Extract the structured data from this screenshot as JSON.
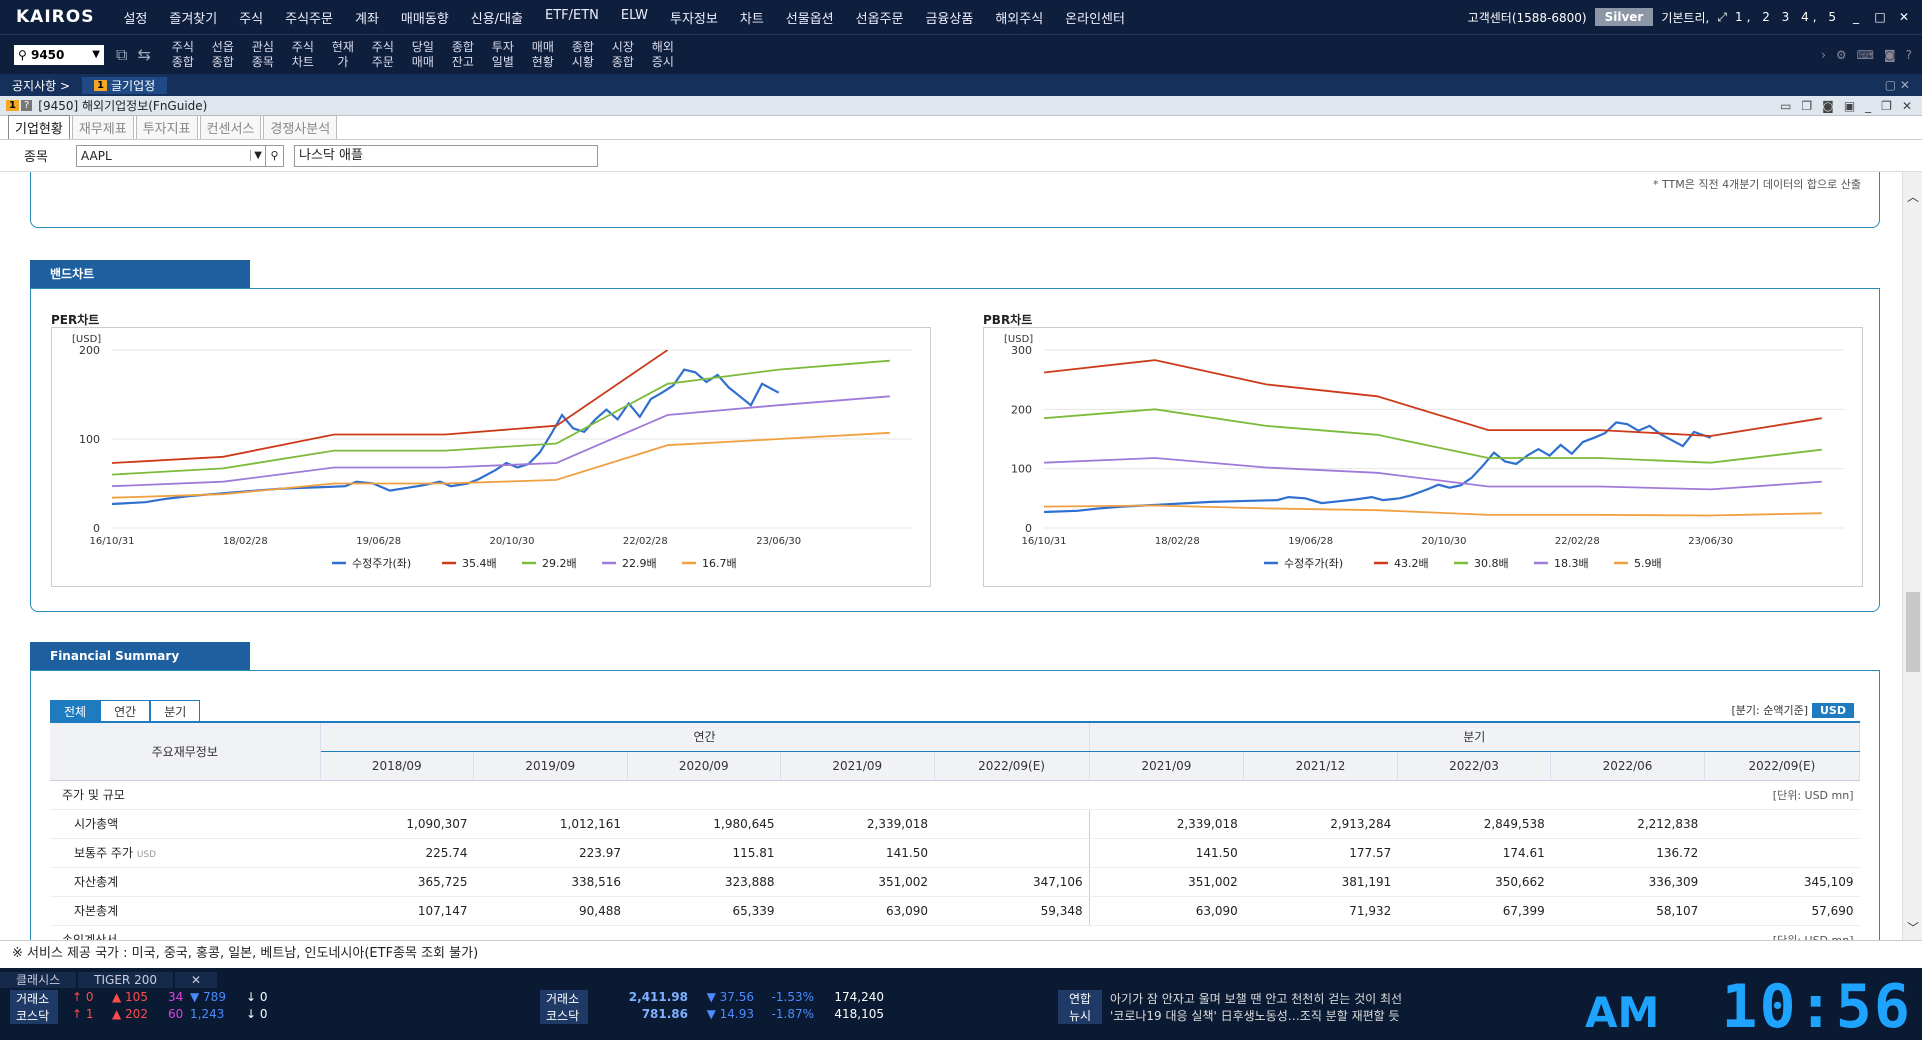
{
  "app": {
    "logo": "KAIROS",
    "menu": [
      "설정",
      "즐겨찾기",
      "주식",
      "주식주문",
      "계좌",
      "매매동향",
      "신용/대출",
      "ETF/ETN",
      "ELW",
      "투자정보",
      "차트",
      "선물옵션",
      "선옵주문",
      "금융상품",
      "해외주식",
      "온라인센터"
    ],
    "customer_center": "고객센터(1588-6800)",
    "grade": "Silver",
    "layout": "기본트리,",
    "screens": "1, 2  3  4, 5"
  },
  "toolbar": {
    "code": "9450",
    "quick": [
      "주식\n종합",
      "선옵\n종합",
      "관심\n종목",
      "주식\n차트",
      "현재\n가",
      "주식\n주문",
      "당일\n매매",
      "종합\n잔고",
      "투자\n일별",
      "매매\n현황",
      "종합\n시황",
      "시장\n종합",
      "해외\n증시"
    ]
  },
  "tabs": {
    "notice": "공지사항 >",
    "active_badge": "1",
    "active": "글기업정",
    "right": "▢ ✕"
  },
  "window": {
    "title": "[9450] 해외기업정보(FnGuide)"
  },
  "subtabs": [
    "기업현황",
    "재무제표",
    "투자지표",
    "컨센서스",
    "경쟁사분석"
  ],
  "search": {
    "label": "종목",
    "symbol": "AAPL",
    "name": "나스닥  애플"
  },
  "ttm_note": "* TTM은 직전 4개분기 데이터의 합으로 산출",
  "band_section": "밴드차트",
  "chart_data": [
    {
      "type": "line",
      "title": "PER차트",
      "ylabel": "[USD]",
      "ylim": [
        0,
        200
      ],
      "yticks": [
        0,
        100,
        200
      ],
      "x_labels": [
        "16/10/31",
        "18/02/28",
        "19/06/28",
        "20/10/30",
        "22/02/28",
        "23/06/30"
      ],
      "legend": [
        "수정주가(좌)",
        "35.4배",
        "29.2배",
        "22.9배",
        "16.7배"
      ],
      "colors": [
        "#2f6fd0",
        "#cc3a1a",
        "#7cba3a",
        "#a07ad8",
        "#f0a040"
      ],
      "series": [
        {
          "name": "수정주가(좌)",
          "points": [
            [
              0,
              27
            ],
            [
              0.3,
              29
            ],
            [
              0.5,
              33
            ],
            [
              0.7,
              36
            ],
            [
              0.9,
              38
            ],
            [
              1.1,
              40
            ],
            [
              1.3,
              42
            ],
            [
              1.5,
              44
            ],
            [
              1.7,
              45
            ],
            [
              1.9,
              46
            ],
            [
              2.1,
              47
            ],
            [
              2.2,
              52
            ],
            [
              2.35,
              50
            ],
            [
              2.5,
              42
            ],
            [
              2.65,
              45
            ],
            [
              2.8,
              48
            ],
            [
              2.95,
              52
            ],
            [
              3.05,
              47
            ],
            [
              3.2,
              50
            ],
            [
              3.3,
              55
            ],
            [
              3.45,
              65
            ],
            [
              3.55,
              73
            ],
            [
              3.65,
              68
            ],
            [
              3.75,
              72
            ],
            [
              3.85,
              85
            ],
            [
              3.95,
              105
            ],
            [
              4.05,
              127
            ],
            [
              4.15,
              112
            ],
            [
              4.25,
              108
            ],
            [
              4.35,
              122
            ],
            [
              4.45,
              133
            ],
            [
              4.55,
              122
            ],
            [
              4.65,
              140
            ],
            [
              4.75,
              125
            ],
            [
              4.85,
              145
            ],
            [
              4.95,
              152
            ],
            [
              5.05,
              160
            ],
            [
              5.15,
              178
            ],
            [
              5.25,
              175
            ],
            [
              5.35,
              164
            ],
            [
              5.45,
              172
            ],
            [
              5.55,
              158
            ],
            [
              5.65,
              148
            ],
            [
              5.75,
              138
            ],
            [
              5.85,
              162
            ],
            [
              6.0,
              152
            ]
          ]
        },
        {
          "name": "35.4배",
          "points": [
            [
              0,
              73
            ],
            [
              1,
              80
            ],
            [
              2,
              105
            ],
            [
              3,
              105
            ],
            [
              4,
              115
            ],
            [
              5,
              200
            ]
          ]
        },
        {
          "name": "29.2배",
          "points": [
            [
              0,
              60
            ],
            [
              1,
              67
            ],
            [
              2,
              87
            ],
            [
              3,
              87
            ],
            [
              4,
              95
            ],
            [
              5,
              162
            ],
            [
              6,
              178
            ],
            [
              7,
              188
            ]
          ]
        },
        {
          "name": "22.9배",
          "points": [
            [
              0,
              47
            ],
            [
              1,
              52
            ],
            [
              2,
              68
            ],
            [
              3,
              68
            ],
            [
              4,
              73
            ],
            [
              5,
              127
            ],
            [
              6,
              138
            ],
            [
              7,
              148
            ]
          ]
        },
        {
          "name": "16.7배",
          "points": [
            [
              0,
              34
            ],
            [
              1,
              38
            ],
            [
              2,
              50
            ],
            [
              3,
              50
            ],
            [
              4,
              54
            ],
            [
              5,
              93
            ],
            [
              6,
              100
            ],
            [
              7,
              107
            ]
          ]
        }
      ]
    },
    {
      "type": "line",
      "title": "PBR차트",
      "ylabel": "[USD]",
      "ylim": [
        0,
        300
      ],
      "yticks": [
        0,
        100,
        200,
        300
      ],
      "x_labels": [
        "16/10/31",
        "18/02/28",
        "19/06/28",
        "20/10/30",
        "22/02/28",
        "23/06/30"
      ],
      "legend": [
        "수정주가(좌)",
        "43.2배",
        "30.8배",
        "18.3배",
        "5.9배"
      ],
      "colors": [
        "#2f6fd0",
        "#cc3a1a",
        "#7cba3a",
        "#a07ad8",
        "#f0a040"
      ],
      "series": [
        {
          "name": "수정주가(좌)",
          "points": [
            [
              0,
              27
            ],
            [
              0.3,
              29
            ],
            [
              0.5,
              33
            ],
            [
              0.7,
              36
            ],
            [
              0.9,
              38
            ],
            [
              1.1,
              40
            ],
            [
              1.3,
              42
            ],
            [
              1.5,
              44
            ],
            [
              1.7,
              45
            ],
            [
              1.9,
              46
            ],
            [
              2.1,
              47
            ],
            [
              2.2,
              52
            ],
            [
              2.35,
              50
            ],
            [
              2.5,
              42
            ],
            [
              2.65,
              45
            ],
            [
              2.8,
              48
            ],
            [
              2.95,
              52
            ],
            [
              3.05,
              47
            ],
            [
              3.2,
              50
            ],
            [
              3.3,
              55
            ],
            [
              3.45,
              65
            ],
            [
              3.55,
              73
            ],
            [
              3.65,
              68
            ],
            [
              3.75,
              72
            ],
            [
              3.85,
              85
            ],
            [
              3.95,
              105
            ],
            [
              4.05,
              127
            ],
            [
              4.15,
              112
            ],
            [
              4.25,
              108
            ],
            [
              4.35,
              122
            ],
            [
              4.45,
              133
            ],
            [
              4.55,
              122
            ],
            [
              4.65,
              140
            ],
            [
              4.75,
              125
            ],
            [
              4.85,
              145
            ],
            [
              4.95,
              152
            ],
            [
              5.05,
              160
            ],
            [
              5.15,
              178
            ],
            [
              5.25,
              175
            ],
            [
              5.35,
              164
            ],
            [
              5.45,
              172
            ],
            [
              5.55,
              158
            ],
            [
              5.65,
              148
            ],
            [
              5.75,
              138
            ],
            [
              5.85,
              162
            ],
            [
              6.0,
              152
            ]
          ]
        },
        {
          "name": "43.2배",
          "points": [
            [
              0,
              262
            ],
            [
              1,
              283
            ],
            [
              2,
              242
            ],
            [
              3,
              222
            ],
            [
              4,
              165
            ],
            [
              5,
              165
            ],
            [
              6,
              155
            ],
            [
              7,
              185
            ]
          ]
        },
        {
          "name": "30.8배",
          "points": [
            [
              0,
              185
            ],
            [
              1,
              200
            ],
            [
              2,
              172
            ],
            [
              3,
              157
            ],
            [
              4,
              118
            ],
            [
              5,
              118
            ],
            [
              6,
              110
            ],
            [
              7,
              132
            ]
          ]
        },
        {
          "name": "18.3배",
          "points": [
            [
              0,
              110
            ],
            [
              1,
              118
            ],
            [
              2,
              102
            ],
            [
              3,
              93
            ],
            [
              4,
              70
            ],
            [
              5,
              70
            ],
            [
              6,
              65
            ],
            [
              7,
              78
            ]
          ]
        },
        {
          "name": "5.9배",
          "points": [
            [
              0,
              36
            ],
            [
              1,
              38
            ],
            [
              2,
              33
            ],
            [
              3,
              30
            ],
            [
              4,
              22
            ],
            [
              5,
              22
            ],
            [
              6,
              21
            ],
            [
              7,
              25
            ]
          ]
        }
      ]
    }
  ],
  "financial": {
    "section": "Financial Summary",
    "tabs": [
      "전체",
      "연간",
      "분기"
    ],
    "basis": "[분기: 순액기준]",
    "currency": "USD",
    "col_head": "주요재무정보",
    "annual": "연간",
    "quarter": "분기",
    "cols": [
      "2018/09",
      "2019/09",
      "2020/09",
      "2021/09",
      "2022/09(E)",
      "2021/09",
      "2021/12",
      "2022/03",
      "2022/06",
      "2022/09(E)"
    ],
    "category": "주가 및 규모",
    "unit": "[단위: USD mn]",
    "rows": [
      {
        "name": "시가총액",
        "sub": "",
        "v": [
          "1,090,307",
          "1,012,161",
          "1,980,645",
          "2,339,018",
          "",
          "2,339,018",
          "2,913,284",
          "2,849,538",
          "2,212,838",
          ""
        ]
      },
      {
        "name": "보통주 주가",
        "sub": "USD",
        "v": [
          "225.74",
          "223.97",
          "115.81",
          "141.50",
          "",
          "141.50",
          "177.57",
          "174.61",
          "136.72",
          ""
        ]
      },
      {
        "name": "자산총계",
        "sub": "",
        "v": [
          "365,725",
          "338,516",
          "323,888",
          "351,002",
          "347,106",
          "351,002",
          "381,191",
          "350,662",
          "336,309",
          "345,109"
        ]
      },
      {
        "name": "자본총계",
        "sub": "",
        "v": [
          "107,147",
          "90,488",
          "65,339",
          "63,090",
          "59,348",
          "63,090",
          "71,932",
          "67,399",
          "58,107",
          "57,690"
        ]
      }
    ],
    "next_category": "손익계산서",
    "next_unit": "[단위: USD mn]"
  },
  "notice": "※ 서비스 제공 국가 : 미국, 중국, 홍콩, 일본, 베트남, 인도네시아(ETF종목 조회 불가)",
  "bottom": {
    "tabs": [
      "클래시스",
      "TIGER 200"
    ],
    "left": [
      {
        "market": "거래소",
        "a": "↑ 0",
        "b": "▲ 105",
        "c": "34",
        "d": "▼ 789",
        "e": "↓ 0"
      },
      {
        "market": "코스닥",
        "a": "↑ 1",
        "b": "▲ 202",
        "c": "60",
        "d": "1,243",
        "e": "↓ 0"
      }
    ],
    "index": [
      {
        "market": "거래소",
        "value": "2,411.98",
        "chg": "▼ 37.56",
        "pct": "-1.53%",
        "vol": "174,240"
      },
      {
        "market": "코스닥",
        "value": "781.86",
        "chg": "▼ 14.93",
        "pct": "-1.87%",
        "vol": "418,105"
      }
    ],
    "news": [
      {
        "src": "연합",
        "text": "아기가 잠 안자고 울며 보챌 땐 안고 천천히 걷는 것이 최선"
      },
      {
        "src": "뉴시",
        "text": "'코로나19 대응 실책' 日후생노동성…조직 분할 재편할 듯"
      }
    ],
    "ampm": "AM",
    "clock": "10:56"
  }
}
